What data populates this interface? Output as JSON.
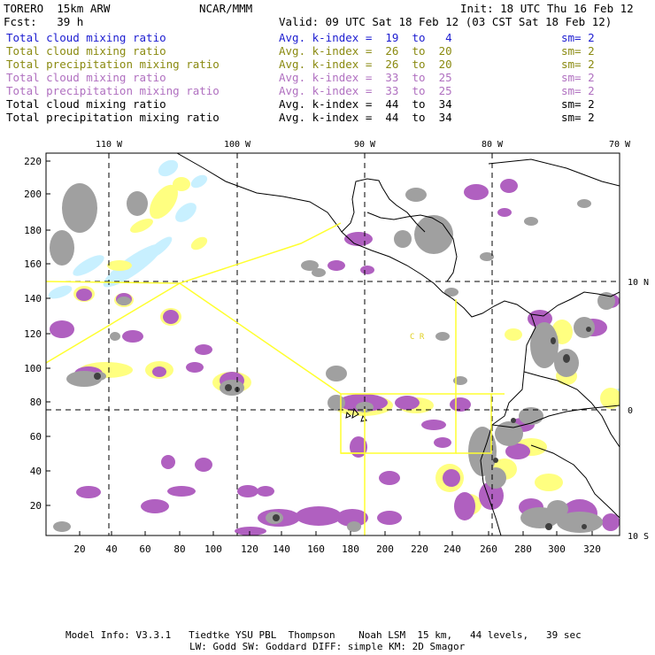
{
  "header": {
    "model": "TORERO  15km ARW",
    "org": "NCAR/MMM",
    "init": "Init: 18 UTC Thu 16 Feb 12",
    "fcst": "Fcst:   39 h",
    "valid": "Valid: 09 UTC Sat 18 Feb 12 (03 CST Sat 18 Feb 12)"
  },
  "legend_rows": [
    {
      "field": "Total cloud mixing ratio",
      "kindex": "Avg. k-index =  19  to   4",
      "sm": "sm= 2",
      "color": "#1c1cd0"
    },
    {
      "field": "Total cloud mixing ratio",
      "kindex": "Avg. k-index =  26  to  20",
      "sm": "sm= 2",
      "color": "#8a8a10"
    },
    {
      "field": "Total precipitation mixing ratio",
      "kindex": "Avg. k-index =  26  to  20",
      "sm": "sm= 2",
      "color": "#8a8a10"
    },
    {
      "field": "Total cloud mixing ratio",
      "kindex": "Avg. k-index =  33  to  25",
      "sm": "sm= 2",
      "color": "#b070c0"
    },
    {
      "field": "Total precipitation mixing ratio",
      "kindex": "Avg. k-index =  33  to  25",
      "sm": "sm= 2",
      "color": "#b070c0"
    },
    {
      "field": "Total cloud mixing ratio",
      "kindex": "Avg. k-index =  44  to  34",
      "sm": "sm= 2",
      "color": "#000000"
    },
    {
      "field": "Total precipitation mixing ratio",
      "kindex": "Avg. k-index =  44  to  34",
      "sm": "sm= 2",
      "color": "#000000"
    }
  ],
  "map": {
    "lon_labels": [
      "110 W",
      "100 W",
      "90 W",
      "80 W",
      "70 W"
    ],
    "lat_labels": [
      "10 N",
      "0",
      "10 S"
    ],
    "y_ticks": [
      "220",
      "200",
      "180",
      "160",
      "140",
      "120",
      "100",
      "80",
      "60",
      "40",
      "20"
    ],
    "x_ticks": [
      "20",
      "40",
      "60",
      "80",
      "100",
      "120",
      "140",
      "160",
      "180",
      "200",
      "220",
      "240",
      "260",
      "280",
      "300",
      "320"
    ],
    "region_label": "C  R",
    "colors": {
      "light_blue": "#c8f0ff",
      "yellow": "#ffff80",
      "purple": "#b060c0",
      "gray": "#a0a0a0",
      "dark_gray": "#404040",
      "flight_track": "#ffff30",
      "frame": "#000000"
    }
  },
  "footer": {
    "line1": "Model Info: V3.3.1   Tiedtke YSU PBL  Thompson    Noah LSM  15 km,   44 levels,   39 sec",
    "line2": "LW: Godd SW: Goddard DIFF: simple KM: 2D Smagor"
  }
}
